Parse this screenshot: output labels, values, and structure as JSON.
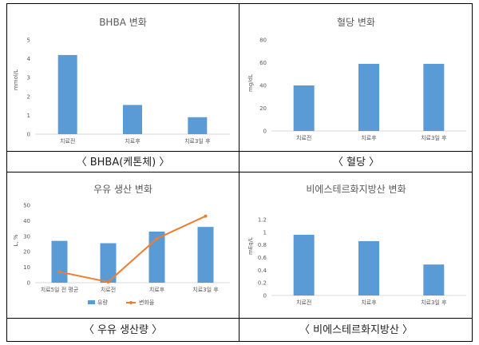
{
  "colors": {
    "bar": "#5b9bd5",
    "line": "#ed7d31",
    "axis": "#d9d9d9",
    "frame": "#000000"
  },
  "captions": [
    "〈  BHBA(케톤체) 〉",
    "〈  혈당  〉",
    "〈 우유  생산량 〉",
    "〈  비에스테르화지방산 〉"
  ],
  "chart_data": [
    {
      "type": "bar",
      "title": "BHBA 변화",
      "ylabel": "mmol/L",
      "categories": [
        "치료전",
        "치료후",
        "치료3일 후"
      ],
      "values": [
        4.2,
        1.55,
        0.9
      ],
      "ylim": [
        0,
        5
      ],
      "yticks": [
        "0",
        "1",
        "2",
        "3",
        "4",
        "5"
      ],
      "grid": false
    },
    {
      "type": "bar",
      "title": "혈당 변화",
      "ylabel": "mg/dL",
      "categories": [
        "치료전",
        "치료후",
        "치료3일 후"
      ],
      "values": [
        40,
        59,
        59
      ],
      "ylim": [
        0,
        80
      ],
      "yticks": [
        "0",
        "20",
        "40",
        "60",
        "80"
      ],
      "grid": false
    },
    {
      "type": "bar+line",
      "title": "우유 생산 변화",
      "ylabel": "L, %",
      "categories": [
        "치료5일 전 평균",
        "치료전",
        "치료후",
        "치료3일 후"
      ],
      "series": [
        {
          "name": "유량",
          "type": "bar",
          "values": [
            27,
            25.5,
            33,
            36
          ]
        },
        {
          "name": "변화율",
          "type": "line",
          "values": [
            7,
            0.5,
            28.5,
            43
          ]
        }
      ],
      "ylim": [
        0,
        50
      ],
      "yticks": [
        "0",
        "10",
        "20",
        "30",
        "40",
        "50"
      ],
      "legend": "bottom",
      "grid": false
    },
    {
      "type": "bar",
      "title": "비에스테르화지방산 변화",
      "ylabel": "mEq/L",
      "categories": [
        "치료전",
        "치료후",
        "치료3일 후"
      ],
      "values": [
        0.96,
        0.86,
        0.49
      ],
      "ylim": [
        0,
        1.2
      ],
      "yticks": [
        "0",
        "0.2",
        "0.4",
        "0.6",
        "0.8",
        "1",
        "1.2"
      ],
      "grid": false
    }
  ]
}
